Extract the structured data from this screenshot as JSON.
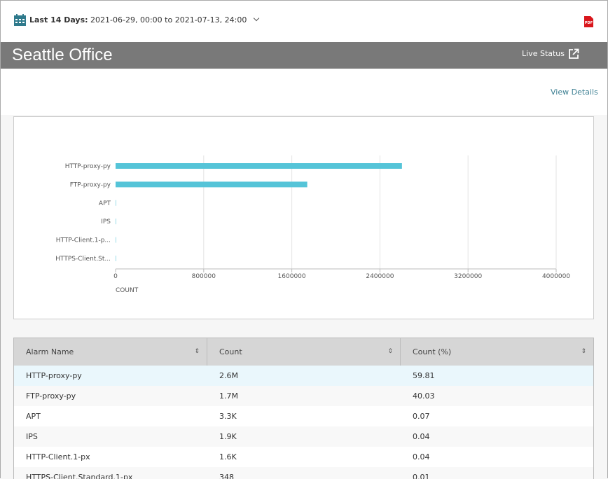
{
  "topbar": {
    "range_label": "Last 14 Days:",
    "range_value": "2021-06-29, 00:00 to 2021-07-13, 24:00",
    "calendar_icon": "calendar-icon",
    "pdf_icon": "pdf-icon",
    "pdf_text": "PDF"
  },
  "header": {
    "title": "Seattle Office",
    "live_status": "Live Status"
  },
  "view_details": "View Details",
  "colors": {
    "bar": "#55c4d8",
    "header": "#797979",
    "link": "#3c7f92"
  },
  "chart_data": {
    "type": "bar",
    "orientation": "horizontal",
    "categories": [
      "HTTP-proxy-py",
      "FTP-proxy-py",
      "APT",
      "IPS",
      "HTTP-Client.1-p...",
      "HTTPS-Client.St..."
    ],
    "values": [
      2600000,
      1740000,
      3300,
      1900,
      1600,
      348
    ],
    "xlabel": "COUNT",
    "xlim": [
      0,
      4000000
    ],
    "xticks": [
      "0",
      "800000",
      "1600000",
      "2400000",
      "3200000",
      "4000000"
    ],
    "grid": true
  },
  "table": {
    "columns": [
      "Alarm Name",
      "Count",
      "Count (%)"
    ],
    "rows": [
      [
        "HTTP-proxy-py",
        "2.6M",
        "59.81"
      ],
      [
        "FTP-proxy-py",
        "1.7M",
        "40.03"
      ],
      [
        "APT",
        "3.3K",
        "0.07"
      ],
      [
        "IPS",
        "1.9K",
        "0.04"
      ],
      [
        "HTTP-Client.1-px",
        "1.6K",
        "0.04"
      ],
      [
        "HTTPS-Client.Standard.1-px",
        "348",
        "0.01"
      ]
    ]
  }
}
